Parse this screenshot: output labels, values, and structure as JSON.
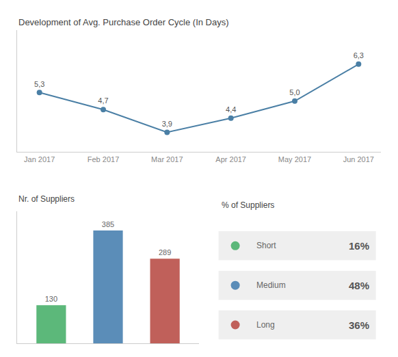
{
  "chart_data": [
    {
      "type": "line",
      "title": "Development of Avg. Purchase Order Cycle (In Days)",
      "categories": [
        "Jan 2017",
        "Feb 2017",
        "Mar 2017",
        "Apr 2017",
        "May 2017",
        "Jun 2017"
      ],
      "values": [
        5.3,
        4.7,
        3.9,
        4.4,
        5.0,
        6.3
      ],
      "value_labels": [
        "5,3",
        "4,7",
        "3,9",
        "4,4",
        "5,0",
        "6,3"
      ],
      "color": "#4a7fa5",
      "ylim": [
        3.2,
        7.5
      ],
      "marker": "circle",
      "data_labels": true,
      "tick_labels": "x",
      "grid": false
    },
    {
      "type": "bar",
      "title": "Nr. of Suppliers",
      "values": [
        130,
        385,
        289
      ],
      "colors": [
        "#5cb87a",
        "#5b8db8",
        "#c0605a"
      ],
      "ylim": [
        0,
        450
      ],
      "data_labels": true,
      "tick_labels": false,
      "grid": false
    },
    {
      "type": "table",
      "title": "% of Suppliers",
      "categories": [
        "Short",
        "Medium",
        "Long"
      ],
      "colors": [
        "#5cb87a",
        "#5b8db8",
        "#c0605a"
      ],
      "values": [
        16,
        48,
        36
      ],
      "value_labels": [
        "16%",
        "48%",
        "36%"
      ],
      "data_labels": true
    }
  ]
}
